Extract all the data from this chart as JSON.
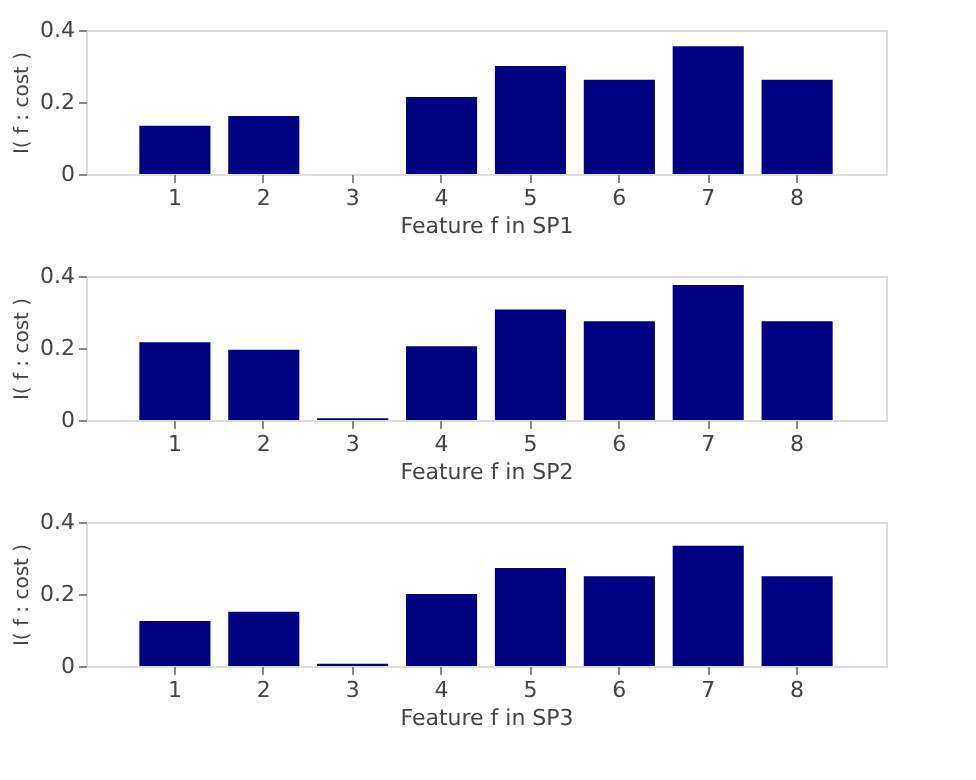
{
  "chart_data": [
    {
      "type": "bar",
      "categories": [
        "1",
        "2",
        "3",
        "4",
        "5",
        "6",
        "7",
        "8"
      ],
      "values": [
        0.134,
        0.161,
        0,
        0.214,
        0.3,
        0.262,
        0.355,
        0.262
      ],
      "color": "#000080",
      "xlabel": "Feature f in SP1",
      "ylabel": "I( f : cost )",
      "ylim": [
        0,
        0.4
      ],
      "yticks": [
        0,
        0.2,
        0.4
      ],
      "grid": false
    },
    {
      "type": "bar",
      "categories": [
        "1",
        "2",
        "3",
        "4",
        "5",
        "6",
        "7",
        "8"
      ],
      "values": [
        0.216,
        0.195,
        0.005,
        0.205,
        0.307,
        0.274,
        0.375,
        0.274
      ],
      "color": "#000080",
      "xlabel": "Feature f in SP2",
      "ylabel": "I( f : cost )",
      "ylim": [
        0,
        0.4
      ],
      "yticks": [
        0,
        0.2,
        0.4
      ],
      "grid": false
    },
    {
      "type": "bar",
      "categories": [
        "1",
        "2",
        "3",
        "4",
        "5",
        "6",
        "7",
        "8"
      ],
      "values": [
        0.125,
        0.151,
        0.006,
        0.2,
        0.272,
        0.249,
        0.334,
        0.249
      ],
      "color": "#000080",
      "xlabel": "Feature f in SP3",
      "ylabel": "I( f : cost )",
      "ylim": [
        0,
        0.4
      ],
      "yticks": [
        0,
        0.2,
        0.4
      ],
      "grid": false
    }
  ]
}
